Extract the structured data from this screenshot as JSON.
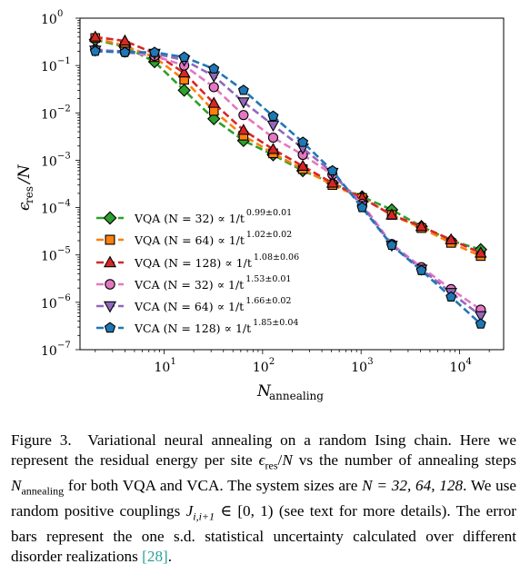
{
  "chart_data": {
    "type": "line",
    "xscale": "log",
    "yscale": "log",
    "xlim": [
      1.4,
      28000
    ],
    "ylim": [
      1e-07,
      1
    ],
    "xlabel": "N_annealing",
    "ylabel": "ε_res/N",
    "xticks": [
      {
        "value": 10,
        "base": "10",
        "exp": "1"
      },
      {
        "value": 100,
        "base": "10",
        "exp": "2"
      },
      {
        "value": 1000,
        "base": "10",
        "exp": "3"
      },
      {
        "value": 10000,
        "base": "10",
        "exp": "4"
      }
    ],
    "yticks": [
      {
        "value": 1,
        "base": "10",
        "exp": "0"
      },
      {
        "value": 0.1,
        "base": "10",
        "exp": "−1"
      },
      {
        "value": 0.01,
        "base": "10",
        "exp": "−2"
      },
      {
        "value": 0.001,
        "base": "10",
        "exp": "−3"
      },
      {
        "value": 0.0001,
        "base": "10",
        "exp": "−4"
      },
      {
        "value": 1e-05,
        "base": "10",
        "exp": "−5"
      },
      {
        "value": 1e-06,
        "base": "10",
        "exp": "−6"
      },
      {
        "value": 1e-07,
        "base": "10",
        "exp": "−7"
      }
    ],
    "legend_position": "lower-left",
    "x": [
      2,
      4,
      8,
      16,
      32,
      64,
      128,
      256,
      512,
      1024,
      2048,
      4096,
      8192,
      16384
    ],
    "series": [
      {
        "name": "VQA (N = 32) ∝ 1/t",
        "exponent": "0.99±0.01",
        "color": "#2ca02c",
        "marker": "diamond",
        "values": [
          0.35,
          0.25,
          0.12,
          0.03,
          0.0075,
          0.0026,
          0.0013,
          0.0006,
          0.00033,
          0.00017,
          9e-05,
          4e-05,
          2e-05,
          1.3e-05
        ]
      },
      {
        "name": "VQA (N = 64) ∝ 1/t",
        "exponent": "1.02±0.02",
        "color": "#ff7f0e",
        "marker": "square",
        "values": [
          0.38,
          0.26,
          0.15,
          0.05,
          0.011,
          0.0033,
          0.0014,
          0.00065,
          0.0003,
          0.00016,
          7e-05,
          3.7e-05,
          1.8e-05,
          9.5e-06
        ]
      },
      {
        "name": "VQA (N = 128) ∝ 1/t",
        "exponent": "1.08±0.06",
        "color": "#d62728",
        "marker": "triangle-up",
        "values": [
          0.4,
          0.33,
          0.18,
          0.07,
          0.016,
          0.0043,
          0.0017,
          0.00075,
          0.00033,
          0.00016,
          7e-05,
          4e-05,
          2.1e-05,
          1.1e-05
        ]
      },
      {
        "name": "VCA (N = 32) ∝ 1/t",
        "exponent": "1.53±0.01",
        "color": "#e377c2",
        "marker": "circle",
        "values": [
          0.22,
          0.19,
          0.16,
          0.1,
          0.035,
          0.009,
          0.003,
          0.0013,
          0.0005,
          0.00012,
          1.7e-05,
          5.5e-06,
          1.9e-06,
          7e-07
        ]
      },
      {
        "name": "VCA (N = 64) ∝ 1/t",
        "exponent": "1.66±0.02",
        "color": "#9467bd",
        "marker": "triangle-down",
        "values": [
          0.21,
          0.2,
          0.18,
          0.13,
          0.06,
          0.017,
          0.0055,
          0.0018,
          0.00055,
          0.00011,
          1.6e-05,
          5e-06,
          1.6e-06,
          5.2e-07
        ]
      },
      {
        "name": "VCA (N = 128) ∝ 1/t",
        "exponent": "1.85±0.04",
        "color": "#1f77b4",
        "marker": "pentagon",
        "values": [
          0.2,
          0.19,
          0.19,
          0.15,
          0.085,
          0.03,
          0.0085,
          0.0024,
          0.0006,
          0.0001,
          1.6e-05,
          4.7e-06,
          1.3e-06,
          3.5e-07
        ]
      }
    ]
  },
  "caption": {
    "label": "Figure 3.",
    "text": "Variational neural annealing on a random Ising chain. Here we represent the residual energy per site ε_res/N vs the number of annealing steps N_annealing for both VQA and VCA. The system sizes are N = 32, 64, 128. We use random positive couplings J_{i,i+1} ∈ [0, 1) (see text for more details). The error bars represent the one s.d. statistical uncertainty calculated over different disorder realizations [28].",
    "part1": "Variational neural annealing on a random Ising chain. Here we represent the residual energy per site ",
    "eps_sub": "res",
    "part2": " vs the number of annealing steps ",
    "nann_sub": "annealing",
    "part3": " for both VQA and VCA. The system sizes are ",
    "sizes": "N = 32, 64, 128",
    "part4": ". We use random positive couplings ",
    "coupling_sub": "i,i+1",
    "coupling_range": " ∈ [0, 1)",
    "part5": " (see text for more details). The error bars represent the one s.d. statistical uncertainty calculated over different disorder realizations ",
    "cite": "[28]",
    "end": "."
  }
}
